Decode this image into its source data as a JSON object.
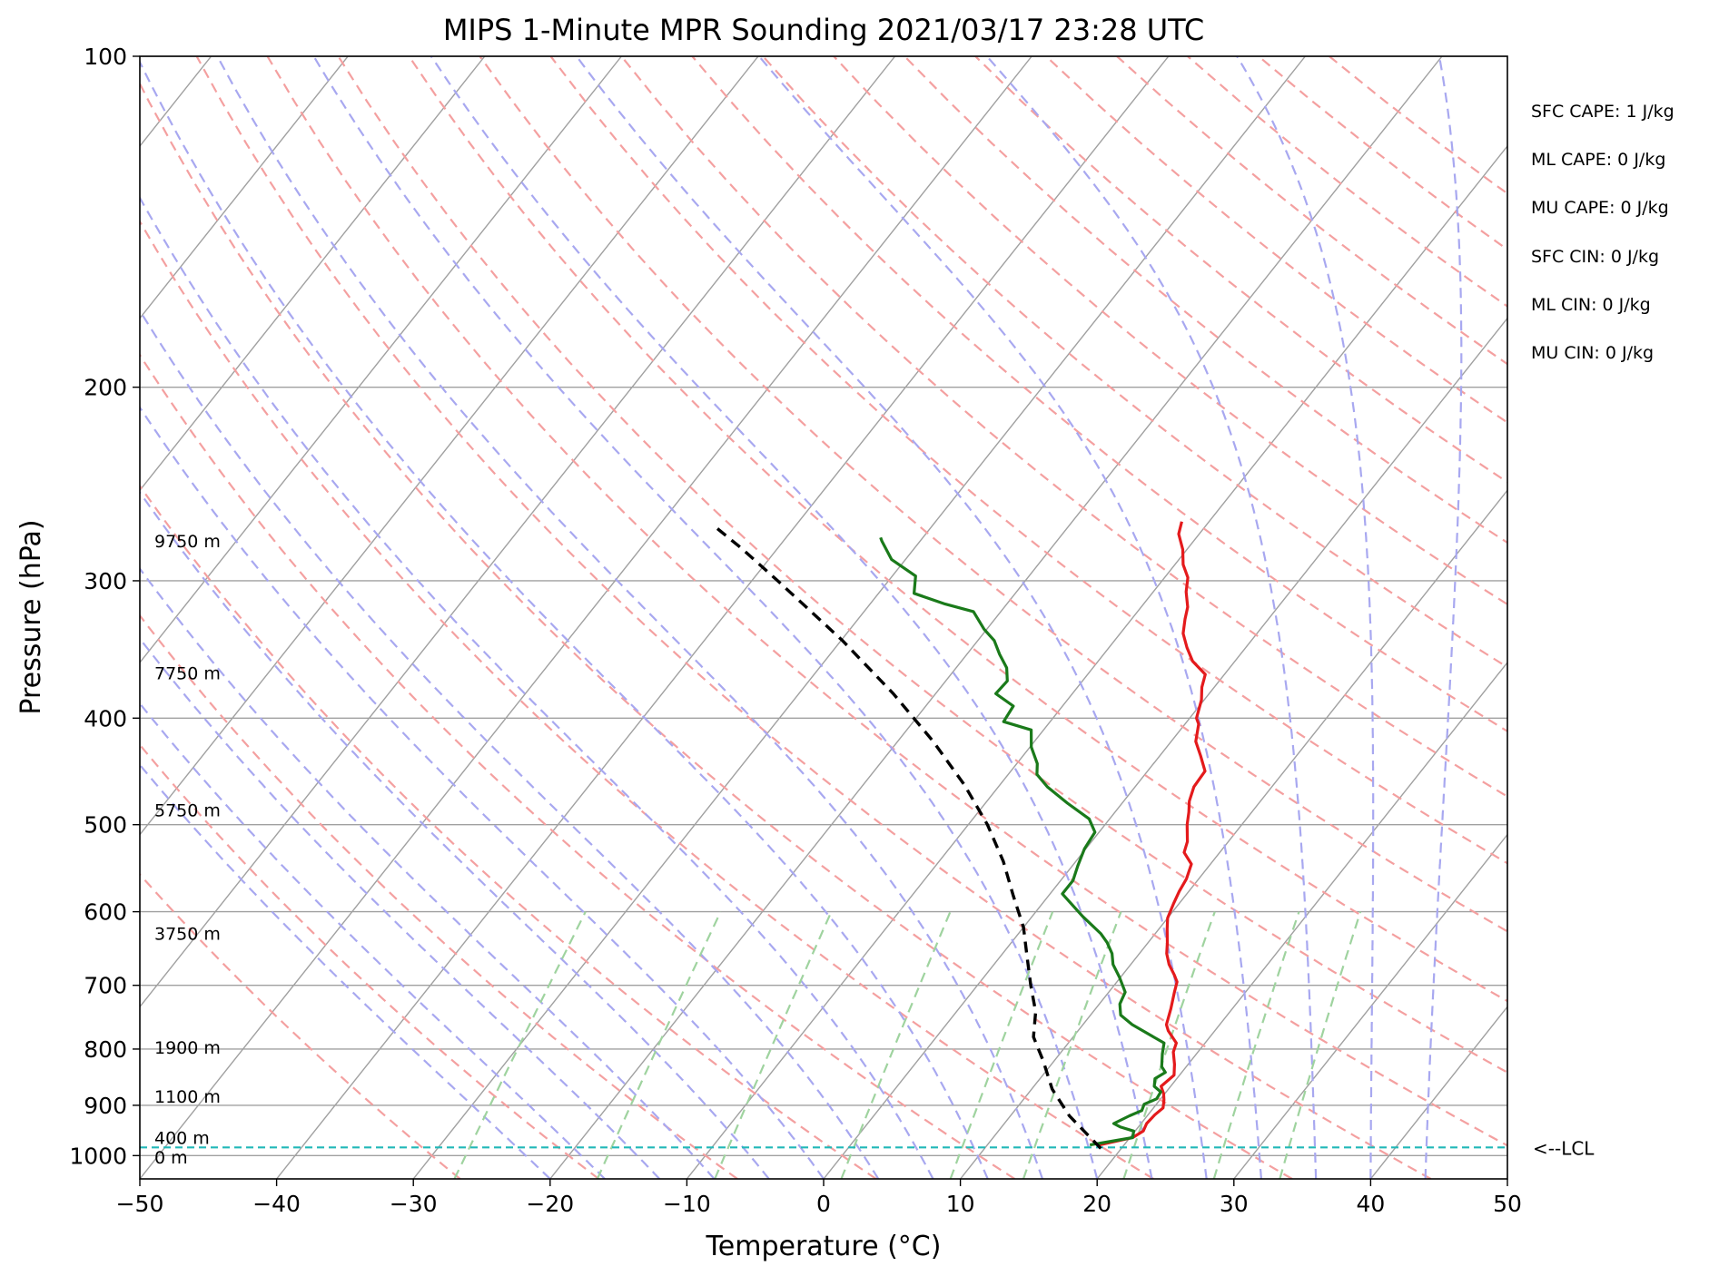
{
  "chart_data": {
    "type": "line",
    "title": "MIPS 1-Minute MPR Sounding 2021/03/17 23:28 UTC",
    "xlabel": "Temperature (°C)",
    "ylabel": "Pressure (hPa)",
    "xlim": [
      -50,
      50
    ],
    "ylim": [
      1050,
      100
    ],
    "yscale": "log",
    "skew": "skew-T",
    "grid": true,
    "x_ticks": [
      -50,
      -40,
      -30,
      -20,
      -10,
      0,
      10,
      20,
      30,
      40,
      50
    ],
    "x_tick_labels": [
      "−50",
      "−40",
      "−30",
      "−20",
      "−10",
      "0",
      "10",
      "20",
      "30",
      "40",
      "50"
    ],
    "y_ticks": [
      100,
      200,
      300,
      400,
      500,
      600,
      700,
      800,
      900,
      1000
    ],
    "y_tick_labels": [
      "100",
      "200",
      "300",
      "400",
      "500",
      "600",
      "700",
      "800",
      "900",
      "1000"
    ],
    "colors": {
      "temperature": "#e41a1c",
      "dewpoint": "#1a7a1a",
      "parcel": "#000000",
      "dry_adiabats": "#f4a0a0",
      "moist_adiabats": "#a8a8f0",
      "mixing_ratio": "#9fd39f",
      "isotherms": "#a0a0a0",
      "lcl": "#22b8b8"
    },
    "series": [
      {
        "key": "temperature",
        "points": [
          [
            18.2,
            978
          ],
          [
            20.2,
            963
          ],
          [
            20.6,
            950
          ],
          [
            20.4,
            935
          ],
          [
            20.5,
            918
          ],
          [
            20.7,
            905
          ],
          [
            20.3,
            890
          ],
          [
            19.9,
            878
          ],
          [
            19.3,
            865
          ],
          [
            19.6,
            845
          ],
          [
            19.0,
            826
          ],
          [
            18.2,
            805
          ],
          [
            17.9,
            790
          ],
          [
            16.6,
            770
          ],
          [
            16.1,
            760
          ],
          [
            15.5,
            735
          ],
          [
            14.8,
            710
          ],
          [
            14.4,
            695
          ],
          [
            13.8,
            685
          ],
          [
            12.8,
            670
          ],
          [
            12.0,
            655
          ],
          [
            11.4,
            640
          ],
          [
            10.6,
            622
          ],
          [
            10.0,
            608
          ],
          [
            9.6,
            590
          ],
          [
            9.3,
            575
          ],
          [
            9.1,
            560
          ],
          [
            8.6,
            543
          ],
          [
            7.4,
            530
          ],
          [
            7.0,
            518
          ],
          [
            6.0,
            500
          ],
          [
            5.4,
            487
          ],
          [
            4.8,
            476
          ],
          [
            4.3,
            462
          ],
          [
            4.2,
            447
          ],
          [
            3.0,
            433
          ],
          [
            1.8,
            420
          ],
          [
            1.0,
            405
          ],
          [
            0.5,
            400
          ],
          [
            -0.2,
            385
          ],
          [
            -0.9,
            375
          ],
          [
            -1.4,
            365
          ],
          [
            -3.1,
            355
          ],
          [
            -4.3,
            345
          ],
          [
            -5.4,
            335
          ],
          [
            -6.1,
            325
          ],
          [
            -6.6,
            317
          ],
          [
            -7.6,
            307
          ],
          [
            -8.3,
            298
          ],
          [
            -9.4,
            290
          ],
          [
            -10.3,
            281
          ],
          [
            -11.5,
            272
          ],
          [
            -12.0,
            265
          ]
        ]
      },
      {
        "key": "dewpoint",
        "points": [
          [
            17.5,
            978
          ],
          [
            20.2,
            963
          ],
          [
            19.9,
            950
          ],
          [
            18.7,
            942
          ],
          [
            18.0,
            935
          ],
          [
            18.7,
            920
          ],
          [
            19.3,
            910
          ],
          [
            19.1,
            898
          ],
          [
            19.7,
            888
          ],
          [
            19.6,
            875
          ],
          [
            18.8,
            865
          ],
          [
            18.4,
            851
          ],
          [
            18.8,
            840
          ],
          [
            18.2,
            830
          ],
          [
            17.5,
            808
          ],
          [
            17.0,
            790
          ],
          [
            13.6,
            760
          ],
          [
            12.2,
            745
          ],
          [
            11.5,
            728
          ],
          [
            11.2,
            710
          ],
          [
            9.9,
            688
          ],
          [
            8.7,
            670
          ],
          [
            8.0,
            655
          ],
          [
            7.0,
            640
          ],
          [
            6.0,
            628
          ],
          [
            3.7,
            606
          ],
          [
            0.9,
            578
          ],
          [
            0.9,
            562
          ],
          [
            0.4,
            545
          ],
          [
            -0.1,
            526
          ],
          [
            -0.3,
            508
          ],
          [
            -1.5,
            494
          ],
          [
            -4.0,
            478
          ],
          [
            -6.4,
            462
          ],
          [
            -7.9,
            450
          ],
          [
            -8.5,
            440
          ],
          [
            -9.9,
            425
          ],
          [
            -10.9,
            410
          ],
          [
            -13.4,
            403
          ],
          [
            -13.6,
            390
          ],
          [
            -15.6,
            380
          ],
          [
            -15.5,
            370
          ],
          [
            -16.3,
            360
          ],
          [
            -17.6,
            350
          ],
          [
            -18.8,
            340
          ],
          [
            -20.2,
            332
          ],
          [
            -22.0,
            320
          ],
          [
            -24.5,
            315
          ],
          [
            -27.4,
            308
          ],
          [
            -28.3,
            297
          ],
          [
            -31.0,
            287
          ],
          [
            -32.8,
            276
          ],
          [
            -33.1,
            274
          ]
        ]
      },
      {
        "key": "parcel",
        "points": [
          [
            18.5,
            985
          ],
          [
            14.3,
            920
          ],
          [
            11.5,
            870
          ],
          [
            9.2,
            820
          ],
          [
            7.1,
            780
          ],
          [
            5.8,
            740
          ],
          [
            3.9,
            700
          ],
          [
            2.0,
            660
          ],
          [
            0.0,
            620
          ],
          [
            -2.6,
            580
          ],
          [
            -5.3,
            540
          ],
          [
            -8.6,
            500
          ],
          [
            -12.6,
            460
          ],
          [
            -17.4,
            420
          ],
          [
            -23.1,
            380
          ],
          [
            -29.9,
            340
          ],
          [
            -38.1,
            300
          ],
          [
            -42.7,
            280
          ],
          [
            -45.8,
            268
          ]
        ]
      }
    ],
    "lcl_pressure": 983,
    "lcl_label": "<--LCL",
    "height_labels": [
      {
        "text": "9750 m",
        "p": 276
      },
      {
        "text": "7750 m",
        "p": 364
      },
      {
        "text": "5750 m",
        "p": 485
      },
      {
        "text": "3750 m",
        "p": 628
      },
      {
        "text": "1900 m",
        "p": 797
      },
      {
        "text": "1100 m",
        "p": 883
      },
      {
        "text": "400 m",
        "p": 963
      },
      {
        "text": "0 m",
        "p": 1003
      }
    ],
    "indices": [
      "SFC CAPE: 1 J/kg",
      "ML CAPE: 0 J/kg",
      "MU CAPE: 0 J/kg",
      "SFC CIN: 0 J/kg",
      "ML CIN: 0 J/kg",
      "MU CIN: 0 J/kg"
    ]
  }
}
